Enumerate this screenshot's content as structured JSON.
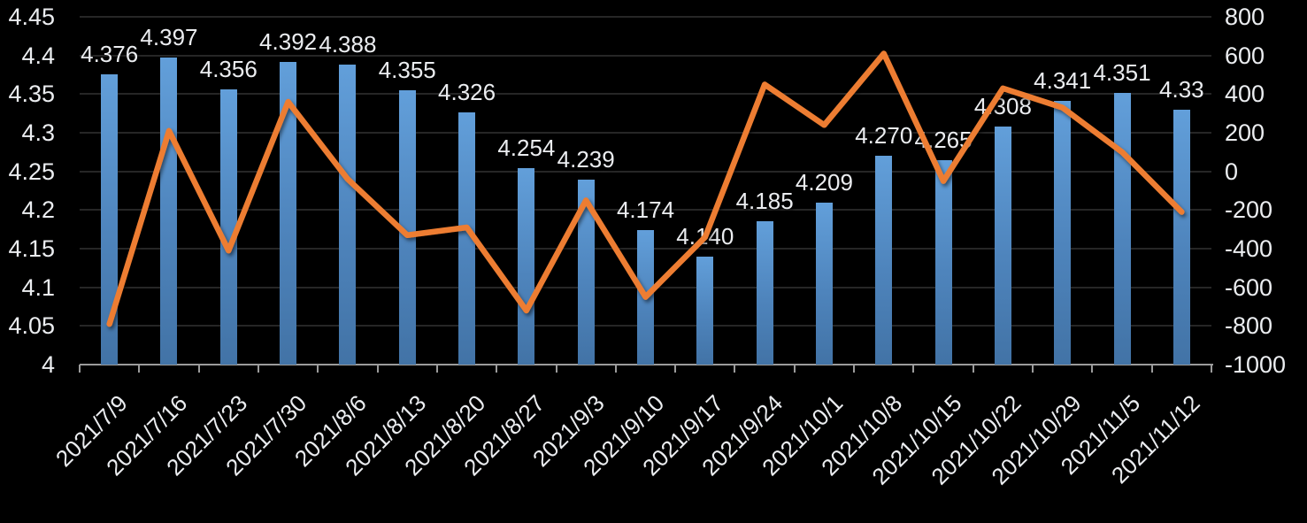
{
  "chart_data": {
    "type": "combo",
    "title": "",
    "legend": "none",
    "background_color": "#000000",
    "gridline_color": "#262626",
    "axis_line_color": "#9b9b9b",
    "label_color": "#ebedf0",
    "categories": [
      "2021/7/9",
      "2021/7/16",
      "2021/7/23",
      "2021/7/30",
      "2021/8/6",
      "2021/8/13",
      "2021/8/20",
      "2021/8/27",
      "2021/9/3",
      "2021/9/10",
      "2021/9/17",
      "2021/9/24",
      "2021/10/1",
      "2021/10/8",
      "2021/10/15",
      "2021/10/22",
      "2021/10/29",
      "2021/11/5",
      "2021/11/12"
    ],
    "series": [
      {
        "name": "bar-series",
        "type": "bar",
        "axis": "left",
        "color_top": "#629FDA",
        "color_mid": "#4E84BC",
        "color_bottom": "#4273A6",
        "values": [
          4.376,
          4.397,
          4.356,
          4.392,
          4.388,
          4.355,
          4.326,
          4.254,
          4.239,
          4.174,
          4.14,
          4.185,
          4.209,
          4.27,
          4.265,
          4.308,
          4.341,
          4.351,
          4.33
        ],
        "data_labels": [
          "4.376",
          "4.397",
          "4.356",
          "4.392",
          "4.388",
          "4.355",
          "4.326",
          "4.254",
          "4.239",
          "4.174",
          "4.140",
          "4.185",
          "4.209",
          "4.270",
          "4.265",
          "4.308",
          "4.341",
          "4.351",
          "4.33"
        ]
      },
      {
        "name": "line-series",
        "type": "line",
        "axis": "right",
        "color": "#ED7D31",
        "values": [
          -790,
          210,
          -410,
          360,
          -40,
          -330,
          -290,
          -720,
          -150,
          -650,
          -340,
          450,
          240,
          610,
          -50,
          430,
          330,
          100,
          -210
        ]
      }
    ],
    "left_axis": {
      "min": 4,
      "max": 4.45,
      "step": 0.05,
      "tick_labels": [
        "4.45",
        "4.4",
        "4.35",
        "4.3",
        "4.25",
        "4.2",
        "4.15",
        "4.1",
        "4.05",
        "4"
      ]
    },
    "right_axis": {
      "min": -1000,
      "max": 800,
      "step": 200,
      "tick_labels": [
        "800",
        "600",
        "400",
        "200",
        "0",
        "-200",
        "-400",
        "-600",
        "-800",
        "-1000"
      ]
    }
  }
}
